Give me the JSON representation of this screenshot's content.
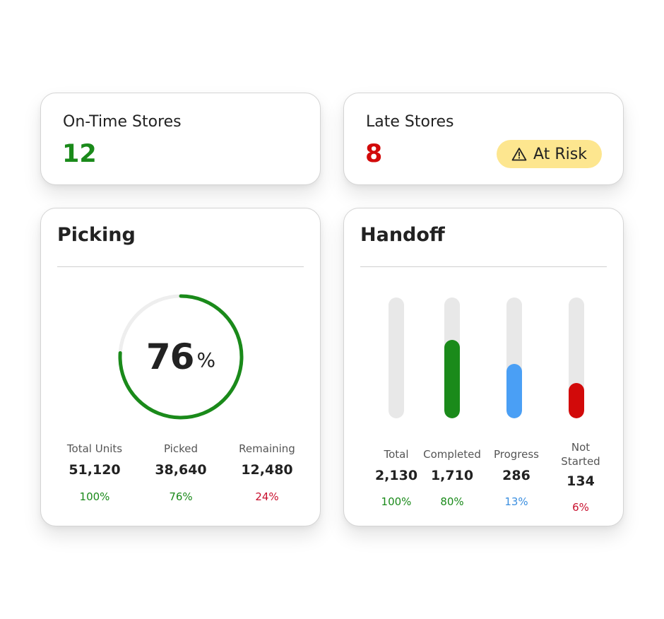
{
  "ontime": {
    "label": "On-Time Stores",
    "value": "12",
    "color": "#1a8a1a"
  },
  "late": {
    "label": "Late Stores",
    "value": "8",
    "color": "#d20a0a",
    "badge": {
      "icon": "warning-triangle-icon",
      "label": "At Risk",
      "color": "#fde68f"
    }
  },
  "picking": {
    "title": "Picking",
    "progress": {
      "value": "76",
      "unit": "%",
      "fraction": 0.76,
      "color": "#1a8a1a",
      "track_color": "#eeeeee"
    },
    "stats": [
      {
        "label": "Total Units",
        "value": "51,120",
        "pct": "100%",
        "pct_color": "green"
      },
      {
        "label": "Picked",
        "value": "38,640",
        "pct": "76%",
        "pct_color": "green"
      },
      {
        "label": "Remaining",
        "value": "12,480",
        "pct": "24%",
        "pct_color": "red"
      }
    ]
  },
  "handoff": {
    "title": "Handoff",
    "bars": [
      {
        "label": "Total",
        "value": "2,130",
        "pct": "100%",
        "fraction": 0.0,
        "color": "#1a8a1a",
        "pct_color": "green"
      },
      {
        "label": "Completed",
        "value": "1,710",
        "pct": "80%",
        "fraction": 0.65,
        "color": "#1a8a1a",
        "pct_color": "green"
      },
      {
        "label": "Progress",
        "value": "286",
        "pct": "13%",
        "fraction": 0.45,
        "color": "#4a9ff5",
        "pct_color": "blue"
      },
      {
        "label": "Not Started",
        "value": "134",
        "pct": "6%",
        "fraction": 0.29,
        "color": "#d20a0a",
        "pct_color": "red"
      }
    ]
  }
}
